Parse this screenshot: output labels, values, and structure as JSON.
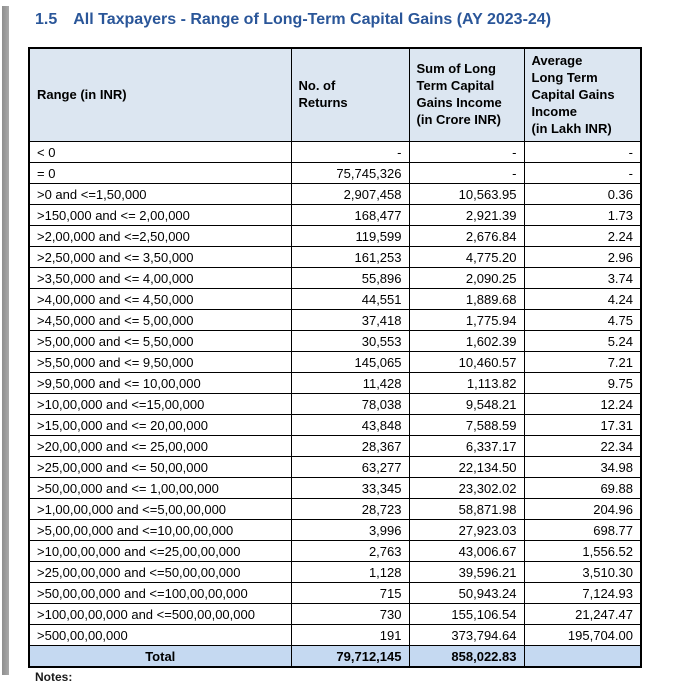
{
  "title": {
    "number": "1.5",
    "text": "All Taxpayers - Range of Long-Term Capital Gains (AY 2023-24)"
  },
  "colors": {
    "title_blue": "#2A5699",
    "header_bg": "#DCE6F1",
    "total_row_bg": "#C5D9F1",
    "border": "#000000"
  },
  "table": {
    "columns": [
      "Range (in INR)",
      "No. of\nReturns",
      "Sum of Long\nTerm Capital\nGains Income\n(in Crore INR)",
      "Average\nLong Term\nCapital Gains\nIncome\n(in Lakh INR)"
    ],
    "rows": [
      [
        "< 0",
        "-",
        "-",
        "-"
      ],
      [
        "= 0",
        "75,745,326",
        "-",
        "-"
      ],
      [
        ">0 and <=1,50,000",
        "2,907,458",
        "10,563.95",
        "0.36"
      ],
      [
        ">150,000 and <= 2,00,000",
        "168,477",
        "2,921.39",
        "1.73"
      ],
      [
        ">2,00,000 and <=2,50,000",
        "119,599",
        "2,676.84",
        "2.24"
      ],
      [
        ">2,50,000 and <= 3,50,000",
        "161,253",
        "4,775.20",
        "2.96"
      ],
      [
        ">3,50,000 and <= 4,00,000",
        "55,896",
        "2,090.25",
        "3.74"
      ],
      [
        ">4,00,000 and <= 4,50,000",
        "44,551",
        "1,889.68",
        "4.24"
      ],
      [
        ">4,50,000 and <= 5,00,000",
        "37,418",
        "1,775.94",
        "4.75"
      ],
      [
        ">5,00,000 and <= 5,50,000",
        "30,553",
        "1,602.39",
        "5.24"
      ],
      [
        ">5,50,000 and <= 9,50,000",
        "145,065",
        "10,460.57",
        "7.21"
      ],
      [
        ">9,50,000 and <= 10,00,000",
        "11,428",
        "1,113.82",
        "9.75"
      ],
      [
        ">10,00,000 and <=15,00,000",
        "78,038",
        "9,548.21",
        "12.24"
      ],
      [
        ">15,00,000 and <= 20,00,000",
        "43,848",
        "7,588.59",
        "17.31"
      ],
      [
        ">20,00,000 and <= 25,00,000",
        "28,367",
        "6,337.17",
        "22.34"
      ],
      [
        ">25,00,000 and <= 50,00,000",
        "63,277",
        "22,134.50",
        "34.98"
      ],
      [
        ">50,00,000 and <= 1,00,00,000",
        "33,345",
        "23,302.02",
        "69.88"
      ],
      [
        ">1,00,00,000 and <=5,00,00,000",
        "28,723",
        "58,871.98",
        "204.96"
      ],
      [
        ">5,00,00,000 and <=10,00,00,000",
        "3,996",
        "27,923.03",
        "698.77"
      ],
      [
        ">10,00,00,000 and <=25,00,00,000",
        "2,763",
        "43,006.67",
        "1,556.52"
      ],
      [
        ">25,00,00,000 and <=50,00,00,000",
        "1,128",
        "39,596.21",
        "3,510.30"
      ],
      [
        ">50,00,00,000 and <=100,00,00,000",
        "715",
        "50,943.24",
        "7,124.93"
      ],
      [
        ">100,00,00,000 and <=500,00,00,000",
        "730",
        "155,106.54",
        "21,247.47"
      ],
      [
        ">500,00,00,000",
        "191",
        "373,794.64",
        "195,704.00"
      ]
    ],
    "total": {
      "label": "Total",
      "returns": "79,712,145",
      "sum": "858,022.83",
      "avg": ""
    }
  },
  "footer": {
    "clipped_text": "Notes:"
  }
}
